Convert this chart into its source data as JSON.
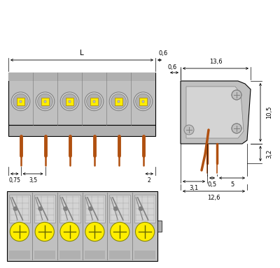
{
  "bg_color": "#ffffff",
  "gray": "#c0c0c0",
  "gray2": "#b0b0b0",
  "gray_dark": "#808080",
  "gray_light": "#d4d4d4",
  "yellow": "#ffee00",
  "brown": "#b05010",
  "black": "#000000",
  "white": "#ffffff",
  "n_poles": 6,
  "dims": {
    "L": "L",
    "d06": "0,6",
    "d136": "13,6",
    "d105": "10,5",
    "d32": "3,2",
    "d05": "0,5",
    "d31": "3,1",
    "d5": "5",
    "d126": "12,6",
    "d075": "0,75",
    "d35": "3,5",
    "d2": "2"
  }
}
